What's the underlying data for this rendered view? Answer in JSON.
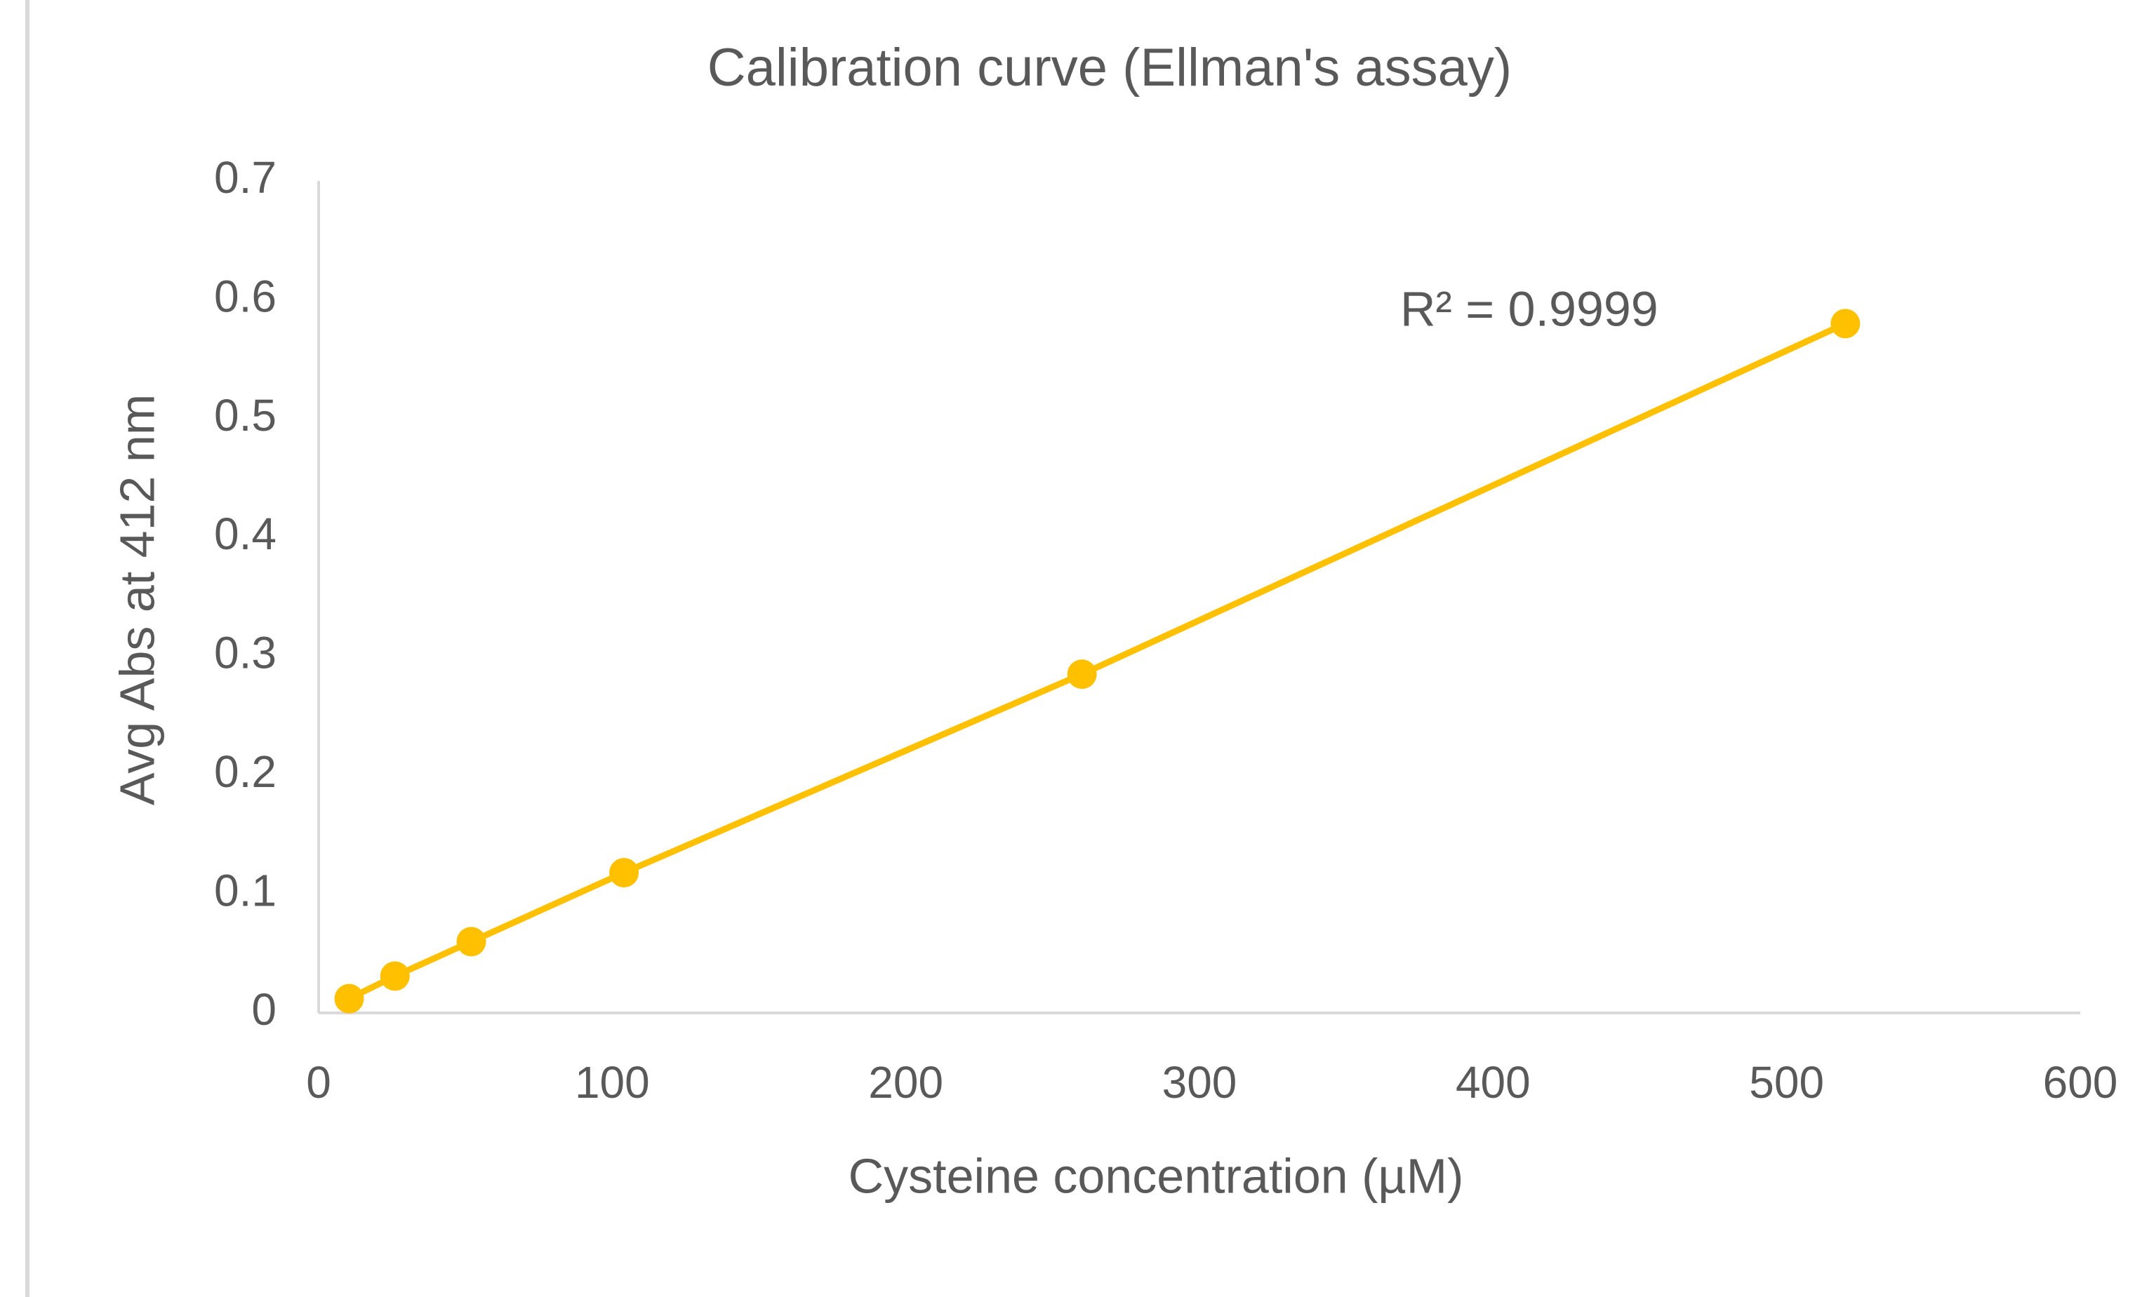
{
  "chart_data": {
    "type": "line",
    "title": "Calibration curve (Ellman's assay)",
    "x_label": "Cysteine concentration (µM)",
    "y_label": "Avg Abs at 412 nm",
    "annotation": "R² = 0.9999",
    "x": [
      10.4,
      26,
      52,
      104,
      260,
      520
    ],
    "series": [
      {
        "name": "Avg Abs",
        "color": "#ffc000",
        "values": [
          0.012,
          0.031,
          0.06,
          0.118,
          0.285,
          0.58
        ]
      }
    ],
    "xlim": [
      0,
      600
    ],
    "xticks": [
      0,
      100,
      200,
      300,
      400,
      500,
      600
    ],
    "ylim": [
      0,
      0.7
    ],
    "yticks": [
      0,
      0.1,
      0.2,
      0.3,
      0.4,
      0.5,
      0.6,
      0.7
    ],
    "grid": false,
    "markers": true
  }
}
